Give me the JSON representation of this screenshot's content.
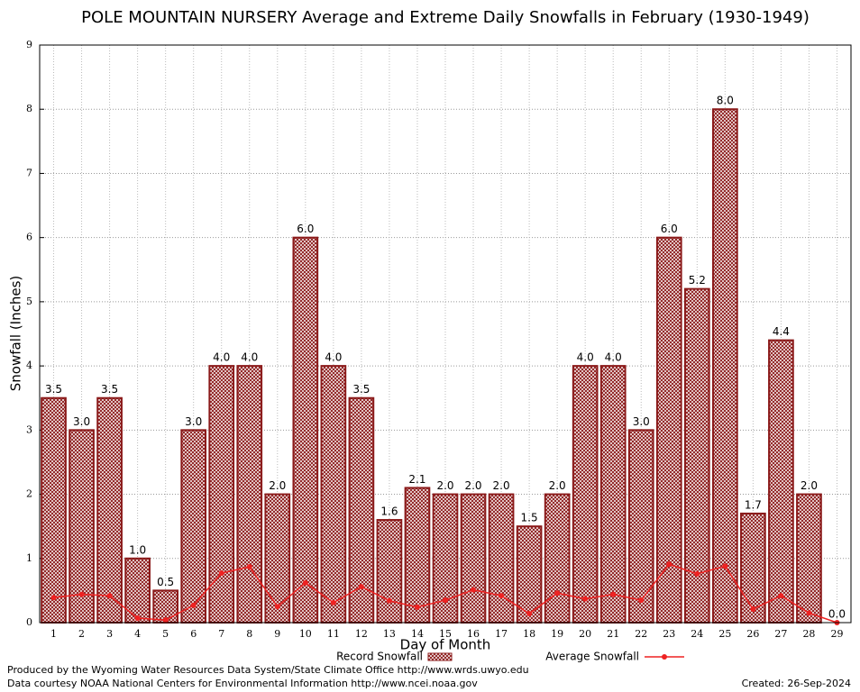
{
  "chart_data": {
    "type": "bar",
    "title": "POLE MOUNTAIN NURSERY Average and Extreme Daily Snowfalls in February (1930-1949)",
    "x_label": "Day of Month",
    "y_label": "Snowfall (Inches)",
    "categories": [
      1,
      2,
      3,
      4,
      5,
      6,
      7,
      8,
      9,
      10,
      11,
      12,
      13,
      14,
      15,
      16,
      17,
      18,
      19,
      20,
      21,
      22,
      23,
      24,
      25,
      26,
      27,
      28,
      29
    ],
    "series": [
      {
        "name": "Record Snowfall",
        "type": "bar",
        "color": "#8b1a1a",
        "values": [
          3.5,
          3.0,
          3.5,
          1.0,
          0.5,
          3.0,
          4.0,
          4.0,
          2.0,
          6.0,
          4.0,
          3.5,
          1.6,
          2.1,
          2.0,
          2.0,
          2.0,
          1.5,
          2.0,
          4.0,
          4.0,
          3.0,
          6.0,
          5.2,
          8.0,
          1.7,
          4.4,
          2.0,
          0.0
        ],
        "value_labels": [
          "3.5",
          "3.0",
          "3.5",
          "1.0",
          "0.5",
          "3.0",
          "4.0",
          "4.0",
          "2.0",
          "6.0",
          "4.0",
          "3.5",
          "1.6",
          "2.1",
          "2.0",
          "2.0",
          "2.0",
          "1.5",
          "2.0",
          "4.0",
          "4.0",
          "3.0",
          "6.0",
          "5.2",
          "8.0",
          "1.7",
          "4.4",
          "2.0",
          "0.0"
        ]
      },
      {
        "name": "Average Snowfall",
        "type": "line",
        "color": "#ee2222",
        "values": [
          0.39,
          0.44,
          0.42,
          0.07,
          0.04,
          0.27,
          0.77,
          0.87,
          0.25,
          0.62,
          0.31,
          0.56,
          0.34,
          0.24,
          0.35,
          0.51,
          0.42,
          0.14,
          0.46,
          0.37,
          0.44,
          0.35,
          0.91,
          0.76,
          0.88,
          0.21,
          0.42,
          0.15,
          0.0
        ]
      }
    ],
    "ylim": [
      0,
      9
    ],
    "yticks": [
      0,
      1,
      2,
      3,
      4,
      5,
      6,
      7,
      8,
      9
    ],
    "grid": true,
    "footer": {
      "left": [
        "Produced by the Wyoming Water Resources Data System/State Climate Office http://www.wrds.uwyo.edu",
        "Data courtesy NOAA National Centers for Environmental Information http://www.ncei.noaa.gov"
      ],
      "right": "Created: 26-Sep-2024"
    }
  }
}
